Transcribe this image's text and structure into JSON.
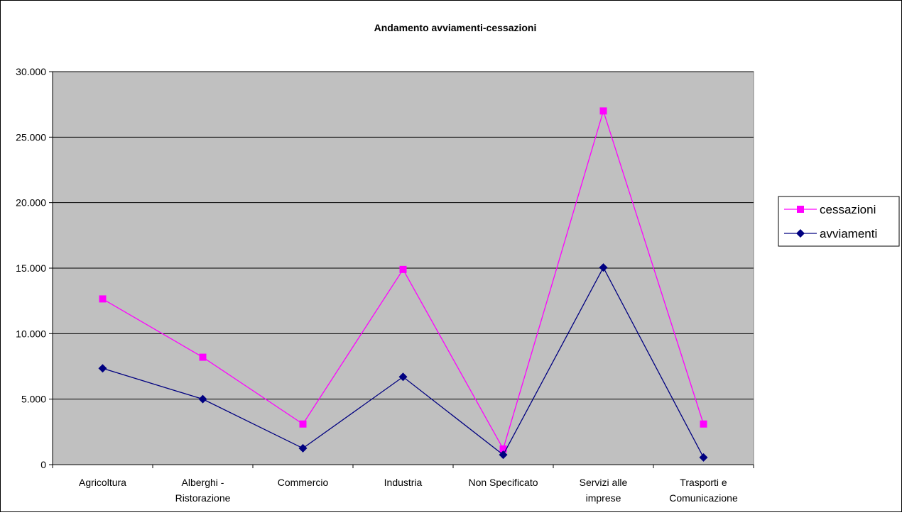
{
  "chart_data": {
    "type": "line",
    "title": "Andamento avviamenti-cessazioni",
    "xlabel": "",
    "ylabel": "",
    "ylim": [
      0,
      30000
    ],
    "yticks": [
      0,
      5000,
      10000,
      15000,
      20000,
      25000,
      30000
    ],
    "ytick_labels": [
      "0",
      "5.000",
      "10.000",
      "15.000",
      "20.000",
      "25.000",
      "30.000"
    ],
    "categories": [
      [
        "Agricoltura"
      ],
      [
        "Alberghi -",
        "Ristorazione"
      ],
      [
        "Commercio"
      ],
      [
        "Industria"
      ],
      [
        "Non Specificato"
      ],
      [
        "Servizi alle",
        "imprese"
      ],
      [
        "Trasporti e",
        "Comunicazione"
      ]
    ],
    "series": [
      {
        "name": "cessazioni",
        "color": "#ff00ff",
        "marker": "square",
        "values": [
          12650,
          8200,
          3100,
          14900,
          1200,
          27000,
          3100
        ]
      },
      {
        "name": "avviamenti",
        "color": "#000080",
        "marker": "diamond",
        "values": [
          7350,
          5000,
          1250,
          6700,
          750,
          15050,
          550
        ]
      }
    ],
    "grid": true,
    "plot_background": "#c0c0c0",
    "legend_position": "right"
  }
}
